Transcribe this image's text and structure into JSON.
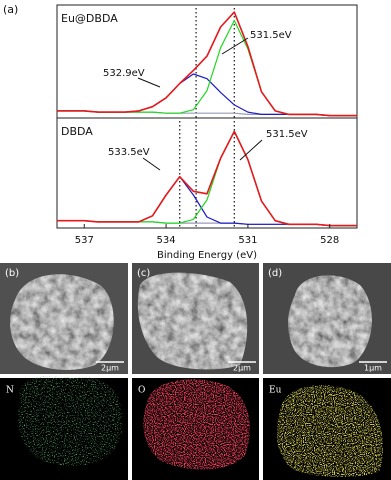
{
  "figure_label": "(a)",
  "chart_data": [
    {
      "type": "line",
      "label": "Eu@DBDA",
      "x": [
        538,
        537.5,
        537,
        536.5,
        536,
        535.5,
        535,
        534.5,
        534,
        533.5,
        533,
        532.5,
        532,
        531.5,
        531,
        530.5,
        530,
        529.5,
        529,
        528.5,
        528,
        527.5,
        527
      ],
      "xlim": [
        538,
        527
      ],
      "ylim": [
        0,
        0.95
      ],
      "series": [
        {
          "color": "#9a9ab8",
          "values": [
            0.06,
            0.06,
            0.06,
            0.05,
            0.05,
            0.05,
            0.05,
            0.05,
            0.04,
            0.04,
            0.04,
            0.04,
            0.04,
            0.04,
            0.03,
            0.03,
            0.03,
            0.03,
            0.03,
            0.03,
            0.02,
            0.02,
            0.02
          ]
        },
        {
          "color": "#1c1cc4",
          "values": [
            0.06,
            0.06,
            0.06,
            0.05,
            0.05,
            0.05,
            0.06,
            0.095,
            0.17,
            0.29,
            0.37,
            0.33,
            0.215,
            0.11,
            0.05,
            0.03,
            0.03,
            0.03,
            0.03,
            0.03,
            0.02,
            0.02,
            0.02
          ]
        },
        {
          "color": "#22d822",
          "values": [
            0.06,
            0.06,
            0.06,
            0.05,
            0.05,
            0.05,
            0.05,
            0.05,
            0.04,
            0.04,
            0.07,
            0.23,
            0.59,
            0.82,
            0.58,
            0.22,
            0.06,
            0.03,
            0.03,
            0.03,
            0.02,
            0.02,
            0.02
          ]
        },
        {
          "color": "#e41a1c",
          "values": [
            0.06,
            0.06,
            0.06,
            0.05,
            0.05,
            0.05,
            0.06,
            0.095,
            0.17,
            0.29,
            0.4,
            0.52,
            0.765,
            0.89,
            0.6,
            0.22,
            0.06,
            0.03,
            0.03,
            0.03,
            0.02,
            0.02,
            0.02
          ]
        }
      ],
      "reference_lines": [
        532.9,
        531.5
      ],
      "annotations": [
        {
          "text": "532.9eV"
        },
        {
          "text": "531.5eV"
        }
      ]
    },
    {
      "type": "line",
      "label": "DBDA",
      "x": [
        538,
        537.5,
        537,
        536.5,
        536,
        535.5,
        535,
        534.5,
        534,
        533.5,
        533,
        532.5,
        532,
        531.5,
        531,
        530.5,
        530,
        529.5,
        529,
        528.5,
        528,
        527.5,
        527
      ],
      "xlim": [
        538,
        527
      ],
      "ylim": [
        0,
        0.9
      ],
      "xticks": [
        537,
        534,
        531,
        528
      ],
      "xlabel": "Binding Energy (eV)",
      "series": [
        {
          "color": "#9a9ab8",
          "values": [
            0.06,
            0.06,
            0.06,
            0.05,
            0.05,
            0.05,
            0.05,
            0.05,
            0.04,
            0.04,
            0.04,
            0.04,
            0.04,
            0.04,
            0.03,
            0.03,
            0.03,
            0.03,
            0.03,
            0.03,
            0.02,
            0.02,
            0.02
          ]
        },
        {
          "color": "#1c1cc4",
          "values": [
            0.06,
            0.06,
            0.06,
            0.05,
            0.05,
            0.05,
            0.05,
            0.1,
            0.27,
            0.42,
            0.27,
            0.09,
            0.04,
            0.04,
            0.03,
            0.03,
            0.03,
            0.03,
            0.03,
            0.03,
            0.02,
            0.02,
            0.02
          ]
        },
        {
          "color": "#22d822",
          "values": [
            0.06,
            0.06,
            0.06,
            0.05,
            0.05,
            0.05,
            0.05,
            0.05,
            0.04,
            0.04,
            0.07,
            0.23,
            0.57,
            0.79,
            0.56,
            0.22,
            0.06,
            0.03,
            0.03,
            0.03,
            0.02,
            0.02,
            0.02
          ]
        },
        {
          "color": "#e41a1c",
          "values": [
            0.06,
            0.06,
            0.06,
            0.05,
            0.05,
            0.05,
            0.05,
            0.1,
            0.27,
            0.42,
            0.3,
            0.28,
            0.57,
            0.79,
            0.56,
            0.22,
            0.06,
            0.03,
            0.03,
            0.03,
            0.02,
            0.02,
            0.02
          ]
        }
      ],
      "reference_lines": [
        533.5,
        532.9,
        531.5
      ],
      "annotations": [
        {
          "text": "533.5eV"
        },
        {
          "text": "531.5eV"
        }
      ]
    }
  ],
  "sem_panels": [
    {
      "label": "(b)",
      "scale": "2μm"
    },
    {
      "label": "(c)",
      "scale": "2μm"
    },
    {
      "label": "(d)",
      "scale": "1μm"
    }
  ],
  "mapping_panels": [
    {
      "element": "N"
    },
    {
      "element": "O"
    },
    {
      "element": "Eu"
    }
  ]
}
